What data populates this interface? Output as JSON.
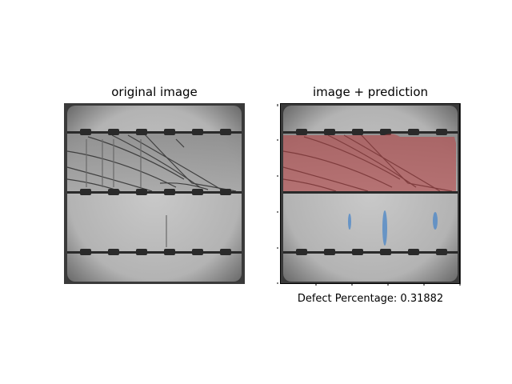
{
  "left_panel": {
    "title": "original image"
  },
  "right_panel": {
    "title": "image + prediction",
    "caption": "Defect Percentage: 0.31882",
    "overlay_colors": {
      "defect_region": "#c0393b",
      "crack_marks": "#4a86c8"
    }
  },
  "colors": {
    "cell_gray": "#b8b8b8",
    "cell_dark_edge": "#3a3a3a",
    "busbar": "#2a2a2a"
  }
}
